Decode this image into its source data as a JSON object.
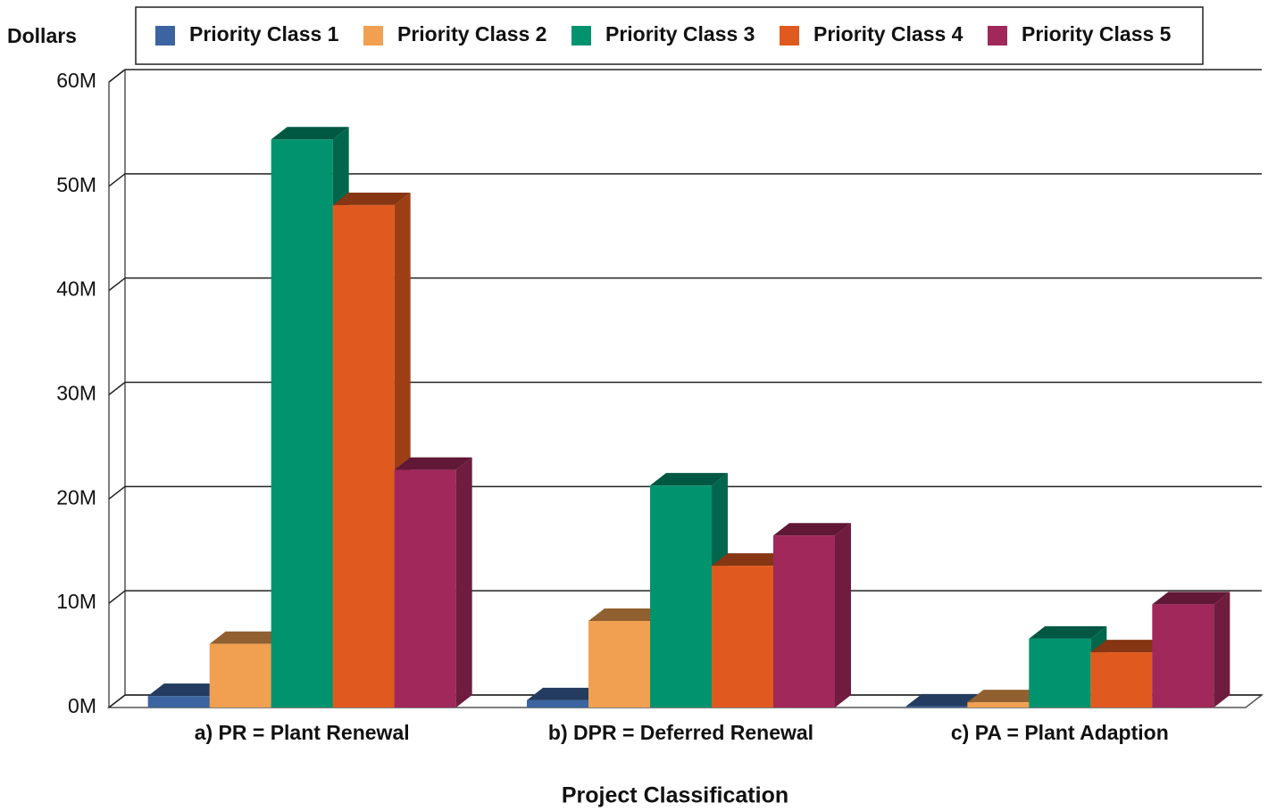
{
  "chart_data": {
    "type": "bar3d",
    "y_label": "Dollars",
    "x_label": "Project Classification",
    "categories": [
      "a) PR = Plant Renewal",
      "b) DPR = Deferred Renewal",
      "c) PA = Plant Adaption"
    ],
    "series": [
      {
        "name": "Priority Class 1",
        "color": "#3b64a0",
        "values": [
          1.1,
          0.7,
          0.1
        ]
      },
      {
        "name": "Priority Class 2",
        "color": "#f0a050",
        "values": [
          6.1,
          8.3,
          0.5
        ]
      },
      {
        "name": "Priority Class 3",
        "color": "#00936e",
        "values": [
          54.5,
          21.3,
          6.6
        ]
      },
      {
        "name": "Priority Class 4",
        "color": "#e05a20",
        "values": [
          48.2,
          13.6,
          5.3
        ]
      },
      {
        "name": "Priority Class 5",
        "color": "#a0285a",
        "values": [
          22.8,
          16.5,
          9.9
        ]
      }
    ],
    "ylim": [
      0,
      60
    ],
    "yticks": [
      {
        "value": 0,
        "label": "0M"
      },
      {
        "value": 10,
        "label": "10M"
      },
      {
        "value": 20,
        "label": "20M"
      },
      {
        "value": 30,
        "label": "30M"
      },
      {
        "value": 40,
        "label": "40M"
      },
      {
        "value": 50,
        "label": "50M"
      },
      {
        "value": 60,
        "label": "60M"
      }
    ],
    "grid": true,
    "legend": "top"
  }
}
